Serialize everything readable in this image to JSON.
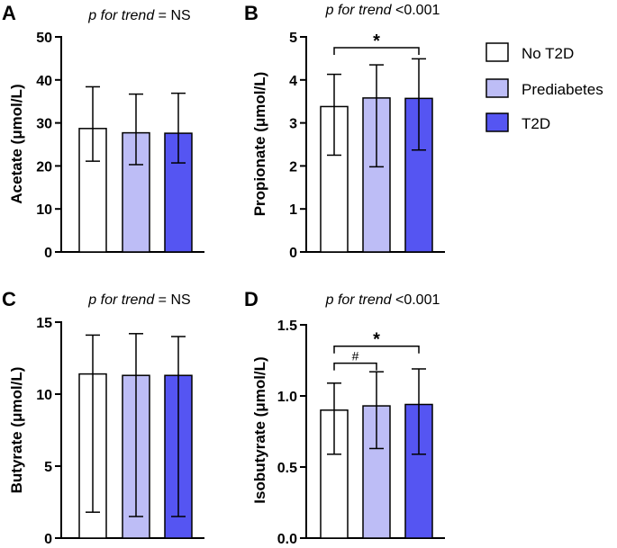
{
  "legend": {
    "items": [
      {
        "label": "No T2D",
        "color": "#ffffff"
      },
      {
        "label": "Prediabetes",
        "color": "#bdbdf6"
      },
      {
        "label": "T2D",
        "color": "#5555f2"
      }
    ]
  },
  "chart_data": [
    {
      "panel": "A",
      "type": "bar",
      "title_italic": "p for trend",
      "title_rest": " = NS",
      "ylabel": "Acetate (μmol/L)",
      "ylim": [
        0,
        50
      ],
      "ticks": [
        0,
        10,
        20,
        30,
        40,
        50
      ],
      "tick_labels": [
        "0",
        "10",
        "20",
        "30",
        "40",
        "50"
      ],
      "categories": [
        "No T2D",
        "Prediabetes",
        "T2D"
      ],
      "values": [
        28.7,
        27.7,
        27.6
      ],
      "err_low": [
        21.1,
        20.3,
        20.7
      ],
      "err_high": [
        38.4,
        36.7,
        36.9
      ],
      "brackets": []
    },
    {
      "panel": "B",
      "type": "bar",
      "title_italic": "p for trend",
      "title_rest": " <0.001",
      "ylabel": "Propionate (μmol/L)",
      "ylim": [
        0,
        5
      ],
      "ticks": [
        0,
        1,
        2,
        3,
        4,
        5
      ],
      "tick_labels": [
        "0",
        "1",
        "2",
        "3",
        "4",
        "5"
      ],
      "categories": [
        "No T2D",
        "Prediabetes",
        "T2D"
      ],
      "values": [
        3.38,
        3.58,
        3.57
      ],
      "err_low": [
        2.25,
        1.98,
        2.37
      ],
      "err_high": [
        4.13,
        4.35,
        4.49
      ],
      "brackets": [
        {
          "from": 0,
          "to": 2,
          "y": 4.75,
          "label": "*"
        }
      ]
    },
    {
      "panel": "C",
      "type": "bar",
      "title_italic": "p for trend",
      "title_rest": " = NS",
      "ylabel": "Butyrate (μmol/L)",
      "ylim": [
        0,
        15
      ],
      "ticks": [
        0,
        5,
        10,
        15
      ],
      "tick_labels": [
        "0",
        "5",
        "10",
        "15"
      ],
      "categories": [
        "No T2D",
        "Prediabetes",
        "T2D"
      ],
      "values": [
        11.4,
        11.3,
        11.3
      ],
      "err_low": [
        1.8,
        1.5,
        1.5
      ],
      "err_high": [
        14.1,
        14.2,
        14.0
      ],
      "brackets": []
    },
    {
      "panel": "D",
      "type": "bar",
      "title_italic": "p for trend",
      "title_rest": " <0.001",
      "ylabel": "Isobutyrate (μmol/L)",
      "ylim": [
        0,
        1.5
      ],
      "ticks": [
        0,
        0.5,
        1.0,
        1.5
      ],
      "tick_labels": [
        "0.0",
        "0.5",
        "1.0",
        "1.5"
      ],
      "categories": [
        "No T2D",
        "Prediabetes",
        "T2D"
      ],
      "values": [
        0.9,
        0.93,
        0.94
      ],
      "err_low": [
        0.59,
        0.63,
        0.59
      ],
      "err_high": [
        1.09,
        1.17,
        1.19
      ],
      "brackets": [
        {
          "from": 0,
          "to": 1,
          "y": 1.23,
          "label": "#"
        },
        {
          "from": 0,
          "to": 2,
          "y": 1.35,
          "label": "*"
        }
      ]
    }
  ]
}
